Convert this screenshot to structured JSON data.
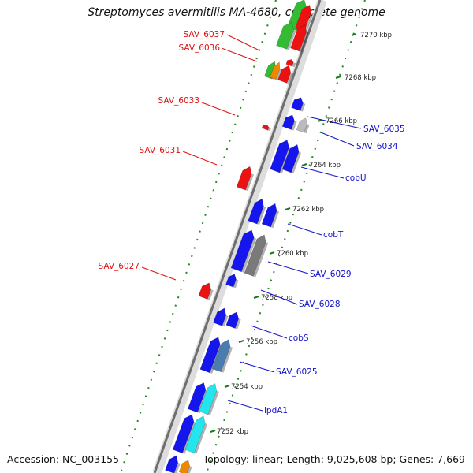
{
  "header": {
    "title": "Streptomyces avermitilis MA-4680, complete genome"
  },
  "footer": {
    "accession": "Accession: NC_003155",
    "topology": "Topology: linear; Length: 9,025,608 bp; Genes: 7,669"
  },
  "colors": {
    "backbone": "#6e6e6e",
    "dots": "#1e8c1e",
    "minus_strand_label": "#dd1111",
    "plus_strand_label": "#1111cc",
    "cds_red": "#ee1111",
    "cds_blue": "#1515ee",
    "cds_gray": "#7a7a7a",
    "cds_steel": "#4a7cb0",
    "cds_cyan": "#22e5ee",
    "cds_green": "#33bb33",
    "cds_orange": "#ee8800"
  },
  "ticks": [
    "7270 kbp",
    "7268 kbp",
    "7266 kbp",
    "7264 kbp",
    "7262 kbp",
    "7260 kbp",
    "7258 kbp",
    "7256 kbp",
    "7254 kbp",
    "7252 kbp"
  ],
  "left_labels": [
    "SAV_6037",
    "SAV_6036",
    "SAV_6033",
    "SAV_6031",
    "SAV_6027"
  ],
  "right_labels": [
    "SAV_6035",
    "SAV_6034",
    "cobU",
    "cobT",
    "SAV_6029",
    "SAV_6028",
    "cobS",
    "SAV_6025",
    "lpdA1"
  ]
}
